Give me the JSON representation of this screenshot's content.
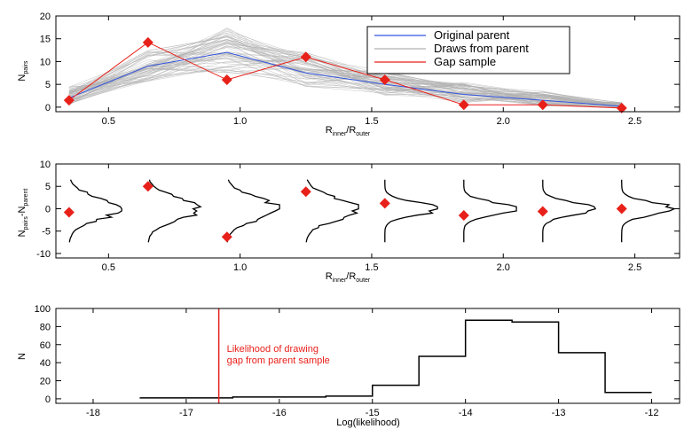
{
  "chart_data": [
    {
      "type": "line",
      "panel": "top",
      "xlabel_main": "R",
      "xlabel_sub1": "inner",
      "xlabel_mid": "/R",
      "xlabel_sub2": "outer",
      "ylabel_main": "N",
      "ylabel_sub": "pairs",
      "xlim": [
        0.3,
        2.67
      ],
      "ylim": [
        -1,
        20
      ],
      "xticks": [
        0.5,
        1.0,
        1.5,
        2.0,
        2.5
      ],
      "xtick_labels": [
        "0.5",
        "1.0",
        "1.5",
        "2.0",
        "2.5"
      ],
      "yticks": [
        0,
        5,
        10,
        15,
        20
      ],
      "ytick_labels": [
        "0",
        "5",
        "10",
        "15",
        "20"
      ],
      "x": [
        0.35,
        0.65,
        0.95,
        1.25,
        1.55,
        1.85,
        2.15,
        2.45
      ],
      "legend_position": "top-right",
      "series": [
        {
          "name": "Original parent",
          "color": "#3355dd",
          "values": [
            2,
            9,
            12,
            7.5,
            5,
            2.8,
            1.5,
            0.2
          ]
        },
        {
          "name": "Draws from parent",
          "color": "#b0b0b0",
          "band_low": [
            0.3,
            5.5,
            7.5,
            4.5,
            2.5,
            1,
            0.2,
            -0.3
          ],
          "band_high": [
            4.5,
            12.5,
            17.5,
            12,
            8,
            5.5,
            3.5,
            1
          ]
        },
        {
          "name": "Gap sample",
          "color": "#e8201a",
          "values": [
            1.5,
            14.2,
            6,
            11,
            6,
            0.5,
            0.5,
            -0.2
          ]
        }
      ]
    },
    {
      "type": "line",
      "panel": "middle",
      "xlabel_main": "R",
      "xlabel_sub1": "inner",
      "xlabel_mid": "/R",
      "xlabel_sub2": "outer",
      "ylabel_parts": [
        "N",
        "pairs",
        "-N",
        "parent"
      ],
      "xlim": [
        0.3,
        2.67
      ],
      "ylim": [
        -11,
        10
      ],
      "xticks": [
        0.5,
        1.0,
        1.5,
        2.0,
        2.5
      ],
      "xtick_labels": [
        "0.5",
        "1.0",
        "1.5",
        "2.0",
        "2.5"
      ],
      "yticks": [
        -10,
        -5,
        0,
        5,
        10
      ],
      "ytick_labels": [
        "-10",
        "-5",
        "0",
        "5",
        "10"
      ],
      "x": [
        0.35,
        0.65,
        0.95,
        1.25,
        1.55,
        1.85,
        2.15,
        2.45
      ],
      "gap_minus_parent": [
        -0.8,
        5,
        -6.3,
        3.8,
        1.2,
        -1.5,
        -0.6,
        0
      ],
      "distribution_widths": [
        0.2,
        0.2,
        0.2,
        0.2,
        0.2,
        0.2,
        0.2,
        0.2
      ]
    },
    {
      "type": "bar",
      "panel": "bottom",
      "xlabel": "Log(likelihood)",
      "ylabel": "N",
      "xlim": [
        -18.4,
        -11.7
      ],
      "ylim": [
        -5,
        100
      ],
      "xticks": [
        -18,
        -17,
        -16,
        -15,
        -14,
        -13,
        -12
      ],
      "xtick_labels": [
        "-18",
        "-17",
        "-16",
        "-15",
        "-14",
        "-13",
        "-12"
      ],
      "yticks": [
        0,
        20,
        40,
        60,
        80,
        100
      ],
      "ytick_labels": [
        "0",
        "20",
        "40",
        "60",
        "80",
        "100"
      ],
      "bin_edges": [
        -17.5,
        -17,
        -16.5,
        -16,
        -15.5,
        -15,
        -14.5,
        -14,
        -13.5,
        -13,
        -12.5,
        -12
      ],
      "counts": [
        1,
        1,
        2,
        2,
        3,
        15,
        47,
        87,
        85,
        51,
        7
      ],
      "gap_likelihood": -16.65,
      "annotation_line1": "Likelihood of drawing",
      "annotation_line2": "gap from parent sample"
    }
  ]
}
